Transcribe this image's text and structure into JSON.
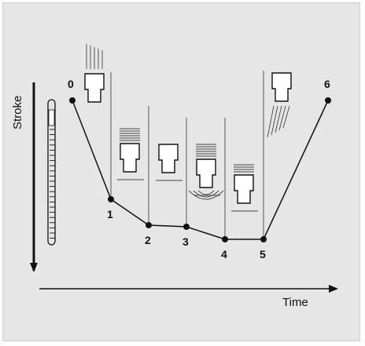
{
  "axes": {
    "x_label": "Time",
    "y_label": "Stroke"
  },
  "colors": {
    "background": "#e6e6e6",
    "ink": "#111111"
  },
  "points": [
    {
      "label": "0"
    },
    {
      "label": "1"
    },
    {
      "label": "2"
    },
    {
      "label": "3"
    },
    {
      "label": "4"
    },
    {
      "label": "5"
    },
    {
      "label": "6"
    }
  ],
  "tools": [
    {
      "icon": "tool-falling-icon"
    },
    {
      "icon": "tool-vibrating-icon"
    },
    {
      "icon": "tool-idle-icon"
    },
    {
      "icon": "tool-impact-icon"
    },
    {
      "icon": "tool-vibrating-icon"
    },
    {
      "icon": "tool-rising-icon"
    }
  ]
}
